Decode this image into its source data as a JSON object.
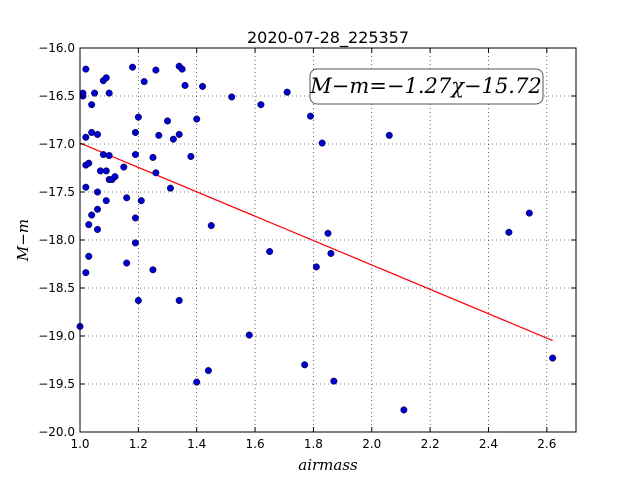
{
  "chart_data": {
    "type": "scatter",
    "title": "2020-07-28_225357",
    "xlabel": "airmass",
    "ylabel": "M−m",
    "xlim": [
      1.0,
      2.7
    ],
    "ylim": [
      -20.0,
      -16.0
    ],
    "y_inverted": true,
    "grid": true,
    "x_ticks": [
      "1.0",
      "1.2",
      "1.4",
      "1.6",
      "1.8",
      "2.0",
      "2.2",
      "2.4",
      "2.6"
    ],
    "x_tick_values": [
      1.0,
      1.2,
      1.4,
      1.6,
      1.8,
      2.0,
      2.2,
      2.4,
      2.6
    ],
    "y_ticks": [
      "−16.0",
      "−16.5",
      "−17.0",
      "−17.5",
      "−18.0",
      "−18.5",
      "−19.0",
      "−19.5",
      "−20.0"
    ],
    "y_tick_values": [
      -16.0,
      -16.5,
      -17.0,
      -17.5,
      -18.0,
      -18.5,
      -19.0,
      -19.5,
      -20.0
    ],
    "annotation": "M−m=−1.27χ−15.72",
    "marker_color": "#0000cc",
    "fit_color": "#ff0000",
    "fit": {
      "slope": -1.27,
      "intercept": -15.72,
      "x_range": [
        1.0,
        2.62
      ]
    },
    "points": [
      [
        1.0,
        -18.9
      ],
      [
        1.01,
        -16.47
      ],
      [
        1.01,
        -16.5
      ],
      [
        1.02,
        -16.22
      ],
      [
        1.02,
        -16.93
      ],
      [
        1.02,
        -17.22
      ],
      [
        1.02,
        -17.45
      ],
      [
        1.02,
        -18.34
      ],
      [
        1.03,
        -17.2
      ],
      [
        1.03,
        -17.84
      ],
      [
        1.03,
        -18.17
      ],
      [
        1.04,
        -16.88
      ],
      [
        1.04,
        -16.59
      ],
      [
        1.04,
        -17.74
      ],
      [
        1.05,
        -16.47
      ],
      [
        1.06,
        -16.9
      ],
      [
        1.06,
        -17.5
      ],
      [
        1.06,
        -17.68
      ],
      [
        1.06,
        -17.89
      ],
      [
        1.07,
        -17.28
      ],
      [
        1.08,
        -17.11
      ],
      [
        1.08,
        -16.34
      ],
      [
        1.09,
        -17.28
      ],
      [
        1.09,
        -17.59
      ],
      [
        1.09,
        -16.31
      ],
      [
        1.1,
        -17.12
      ],
      [
        1.1,
        -17.37
      ],
      [
        1.1,
        -16.47
      ],
      [
        1.11,
        -17.37
      ],
      [
        1.12,
        -17.34
      ],
      [
        1.15,
        -17.24
      ],
      [
        1.16,
        -17.56
      ],
      [
        1.16,
        -18.24
      ],
      [
        1.18,
        -16.2
      ],
      [
        1.19,
        -17.77
      ],
      [
        1.19,
        -16.88
      ],
      [
        1.19,
        -17.11
      ],
      [
        1.19,
        -18.03
      ],
      [
        1.2,
        -18.63
      ],
      [
        1.2,
        -16.72
      ],
      [
        1.21,
        -17.59
      ],
      [
        1.22,
        -16.35
      ],
      [
        1.25,
        -18.31
      ],
      [
        1.25,
        -17.14
      ],
      [
        1.26,
        -16.23
      ],
      [
        1.26,
        -17.3
      ],
      [
        1.27,
        -16.91
      ],
      [
        1.3,
        -16.76
      ],
      [
        1.31,
        -17.46
      ],
      [
        1.32,
        -16.95
      ],
      [
        1.34,
        -16.9
      ],
      [
        1.34,
        -16.19
      ],
      [
        1.35,
        -16.22
      ],
      [
        1.34,
        -18.63
      ],
      [
        1.36,
        -16.39
      ],
      [
        1.38,
        -17.13
      ],
      [
        1.4,
        -19.48
      ],
      [
        1.4,
        -16.74
      ],
      [
        1.42,
        -16.4
      ],
      [
        1.44,
        -19.36
      ],
      [
        1.45,
        -17.85
      ],
      [
        1.52,
        -16.51
      ],
      [
        1.58,
        -18.99
      ],
      [
        1.62,
        -16.59
      ],
      [
        1.65,
        -18.12
      ],
      [
        1.71,
        -16.46
      ],
      [
        1.77,
        -19.3
      ],
      [
        1.79,
        -16.71
      ],
      [
        1.81,
        -18.28
      ],
      [
        1.83,
        -16.99
      ],
      [
        1.85,
        -17.93
      ],
      [
        1.86,
        -18.14
      ],
      [
        1.87,
        -19.47
      ],
      [
        2.06,
        -16.91
      ],
      [
        2.11,
        -19.77
      ],
      [
        2.47,
        -17.92
      ],
      [
        2.54,
        -17.72
      ],
      [
        2.62,
        -19.23
      ]
    ]
  }
}
